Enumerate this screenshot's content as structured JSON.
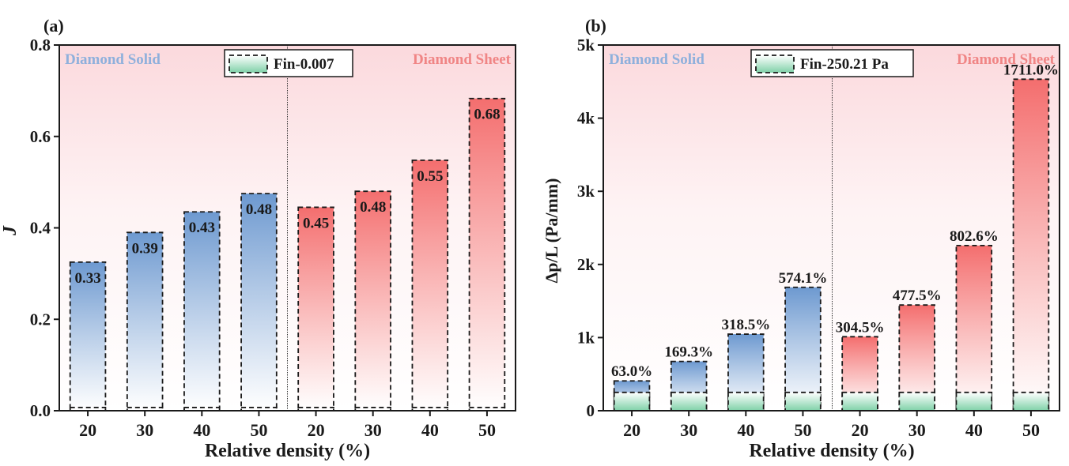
{
  "colors": {
    "solid_fill": "#6f9bd1",
    "sheet_fill": "#f47676",
    "fin_fill": "#7fd1a8",
    "solid_label": "#8fb0dc",
    "sheet_label": "#f08585",
    "frame": "#1a1a1a"
  },
  "chart_data": [
    {
      "type": "bar",
      "panel_label": "(a)",
      "title": "",
      "xlabel": "Relative density (%)",
      "ylabel": "J",
      "categories": [
        "20",
        "30",
        "40",
        "50",
        "20",
        "30",
        "40",
        "50"
      ],
      "ylim": [
        0,
        0.8
      ],
      "yticks": [
        0.0,
        0.2,
        0.4,
        0.6,
        0.8
      ],
      "ytick_labels": [
        "0.0",
        "0.2",
        "0.4",
        "0.6",
        "0.8"
      ],
      "groups": [
        {
          "name": "Diamond Solid",
          "values": [
            0.325,
            0.39,
            0.435,
            0.475
          ],
          "labels": [
            "0.33",
            "0.39",
            "0.43",
            "0.48"
          ]
        },
        {
          "name": "Diamond Sheet",
          "values": [
            0.445,
            0.48,
            0.548,
            0.683
          ],
          "labels": [
            "0.45",
            "0.48",
            "0.55",
            "0.68"
          ]
        }
      ],
      "reference": {
        "name": "Fin-0.007",
        "value": 0.007
      },
      "legend": "top-center"
    },
    {
      "type": "bar",
      "panel_label": "(b)",
      "title": "",
      "xlabel": "Relative density (%)",
      "ylabel": "Δp/L (Pa/mm)",
      "categories": [
        "20",
        "30",
        "40",
        "50",
        "20",
        "30",
        "40",
        "50"
      ],
      "ylim": [
        0,
        5000
      ],
      "yticks": [
        0,
        1000,
        2000,
        3000,
        4000,
        5000
      ],
      "ytick_labels": [
        "0",
        "1k",
        "2k",
        "3k",
        "4k",
        "5k"
      ],
      "groups": [
        {
          "name": "Diamond Solid",
          "values": [
            408,
            674,
            1047,
            1687
          ],
          "labels": [
            "63.0%",
            "169.3%",
            "318.5%",
            "574.1%"
          ]
        },
        {
          "name": "Diamond Sheet",
          "values": [
            1012,
            1445,
            2258,
            4532
          ],
          "labels": [
            "304.5%",
            "477.5%",
            "802.6%",
            "1711.0%"
          ]
        }
      ],
      "reference": {
        "name": "Fin-250.21 Pa",
        "value": 250.21
      },
      "legend": "top-center"
    }
  ]
}
